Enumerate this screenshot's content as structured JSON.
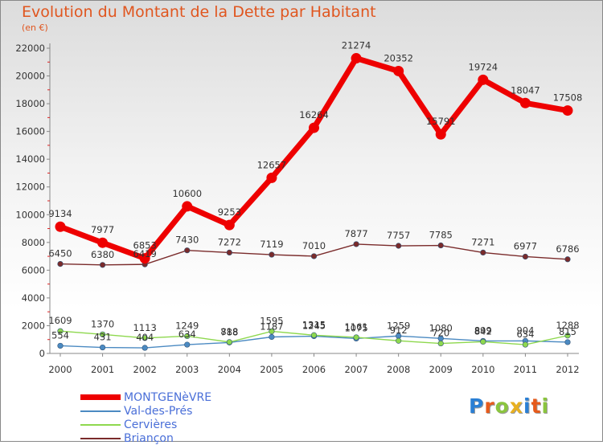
{
  "header": {
    "title": "Evolution du Montant de la Dette par Habitant",
    "subtitle": "(en €)"
  },
  "logo": {
    "text": "Proxiti",
    "letter_colors": [
      "#2a7fd4",
      "#e65b1c",
      "#8bc53f",
      "#e8b020",
      "#2a7fd4",
      "#e65b1c",
      "#8bc53f"
    ]
  },
  "chart_data": {
    "type": "line",
    "title": "Evolution du Montant de la Dette par Habitant",
    "subtitle": "(en €)",
    "xlabel": "",
    "ylabel": "",
    "x": [
      "2000",
      "2001",
      "2002",
      "2003",
      "2004",
      "2005",
      "2006",
      "2007",
      "2008",
      "2009",
      "2010",
      "2011",
      "2012"
    ],
    "ylim": [
      0,
      22000
    ],
    "yticks": [
      "0",
      "2000",
      "4000",
      "6000",
      "8000",
      "10000",
      "12000",
      "14000",
      "16000",
      "18000",
      "20000",
      "22000"
    ],
    "grid": false,
    "legend_position": "bottom-left",
    "series": [
      {
        "name": "MONTGENèVRE",
        "color": "#ee0000",
        "values": [
          9134,
          7977,
          6853,
          10600,
          9253,
          12657,
          16264,
          21274,
          20352,
          15791,
          19724,
          18047,
          17508
        ],
        "labels": [
          "9134",
          "7977",
          "6853",
          "10600",
          "9253",
          "12657",
          "16264",
          "21274",
          "20352",
          "15791",
          "19724",
          "18047",
          "17508"
        ]
      },
      {
        "name": "Val-des-Prés",
        "color": "#4b8ac2",
        "values": [
          554,
          431,
          404,
          634,
          788,
          1187,
          1245,
          1075,
          1259,
          1080,
          899,
          904,
          815
        ],
        "labels": [
          "554",
          "431",
          "404",
          "634",
          "788",
          "1187",
          "1245",
          "1075",
          "1259",
          "1080",
          "899",
          "904",
          "815"
        ]
      },
      {
        "name": "Cervières",
        "color": "#8ed84e",
        "values": [
          1609,
          1370,
          1113,
          1249,
          818,
          1595,
          1315,
          1161,
          912,
          720,
          842,
          634,
          1288
        ],
        "labels": [
          "1609",
          "1370",
          "1113",
          "1249",
          "818",
          "1595",
          "1315",
          "1161",
          "912",
          "720",
          "842",
          "634",
          "1288"
        ]
      },
      {
        "name": "Briançon",
        "color": "#7a2b2b",
        "values": [
          6450,
          6380,
          6419,
          7430,
          7272,
          7119,
          7010,
          7877,
          7757,
          7785,
          7271,
          6977,
          6786
        ],
        "labels": [
          "6450",
          "6380",
          "6419",
          "7430",
          "7272",
          "7119",
          "7010",
          "7877",
          "7757",
          "7785",
          "7271",
          "6977",
          "6786"
        ]
      }
    ]
  }
}
